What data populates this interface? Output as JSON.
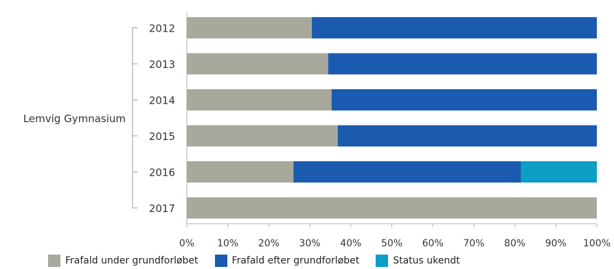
{
  "chart_data": {
    "type": "bar",
    "orientation": "horizontal",
    "stacked": true,
    "group_label": "Lemvig Gymnasium",
    "categories": [
      "2012",
      "2013",
      "2014",
      "2015",
      "2016",
      "2017"
    ],
    "series": [
      {
        "name": "Frafald under grundforløbet",
        "color": "#a8a89c",
        "values": [
          30.5,
          34.5,
          35.3,
          36.8,
          26,
          100
        ]
      },
      {
        "name": "Frafald efter grundforløbet",
        "color": "#1a5bb0",
        "values": [
          69.5,
          65.5,
          64.7,
          63.2,
          55.5,
          0
        ]
      },
      {
        "name": "Status ukendt",
        "color": "#0c9ec4",
        "values": [
          0,
          0,
          0,
          0,
          18.5,
          0
        ]
      }
    ],
    "xlim": [
      0,
      100
    ],
    "xticks": [
      "0%",
      "10%",
      "20%",
      "30%",
      "40%",
      "50%",
      "60%",
      "70%",
      "80%",
      "90%",
      "100%"
    ],
    "legend_position": "bottom",
    "grid": false
  }
}
